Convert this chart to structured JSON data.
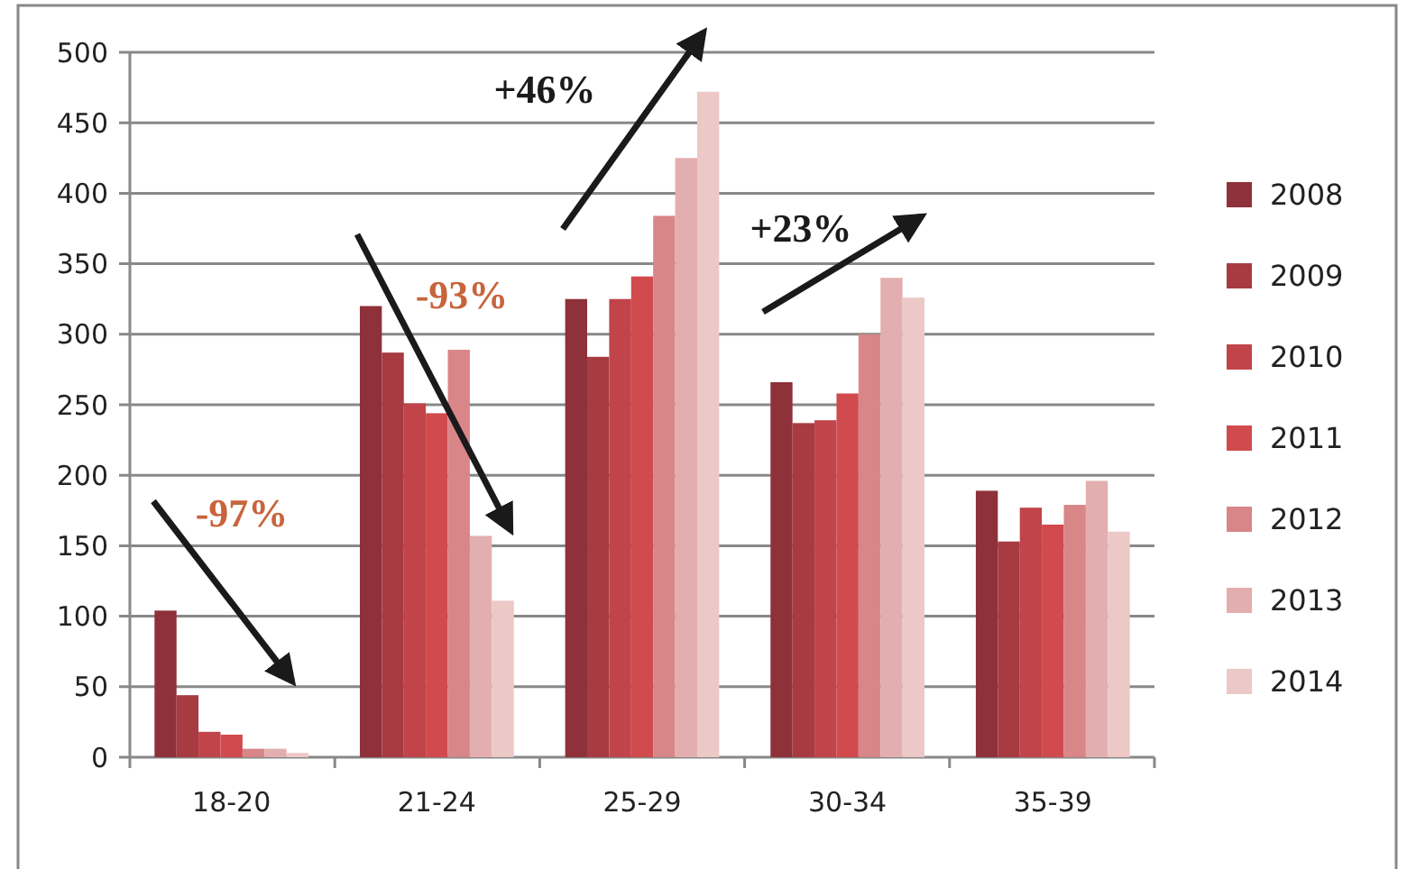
{
  "chart_data": {
    "type": "bar",
    "categories": [
      "18-20",
      "21-24",
      "25-29",
      "30-34",
      "35-39"
    ],
    "series": [
      {
        "name": "2008",
        "color": "#8e313a",
        "values": [
          104,
          320,
          325,
          266,
          189
        ]
      },
      {
        "name": "2009",
        "color": "#a83a42",
        "values": [
          44,
          287,
          284,
          237,
          153
        ]
      },
      {
        "name": "2010",
        "color": "#c0444a",
        "values": [
          18,
          251,
          325,
          239,
          177
        ]
      },
      {
        "name": "2011",
        "color": "#d14a4e",
        "values": [
          16,
          244,
          341,
          258,
          165
        ]
      },
      {
        "name": "2012",
        "color": "#d98688",
        "values": [
          6,
          289,
          384,
          300,
          179
        ]
      },
      {
        "name": "2013",
        "color": "#e3aeaf",
        "values": [
          6,
          157,
          425,
          340,
          196
        ]
      },
      {
        "name": "2014",
        "color": "#ecc8c7",
        "values": [
          3,
          111,
          472,
          326,
          160
        ]
      }
    ],
    "ylim": [
      0,
      500
    ],
    "yticks": [
      0,
      50,
      100,
      150,
      200,
      250,
      300,
      350,
      400,
      450,
      500
    ],
    "grid": "y",
    "legend": "right",
    "annotations": [
      "-97%",
      "-93%",
      "+46%",
      "+23%"
    ]
  }
}
